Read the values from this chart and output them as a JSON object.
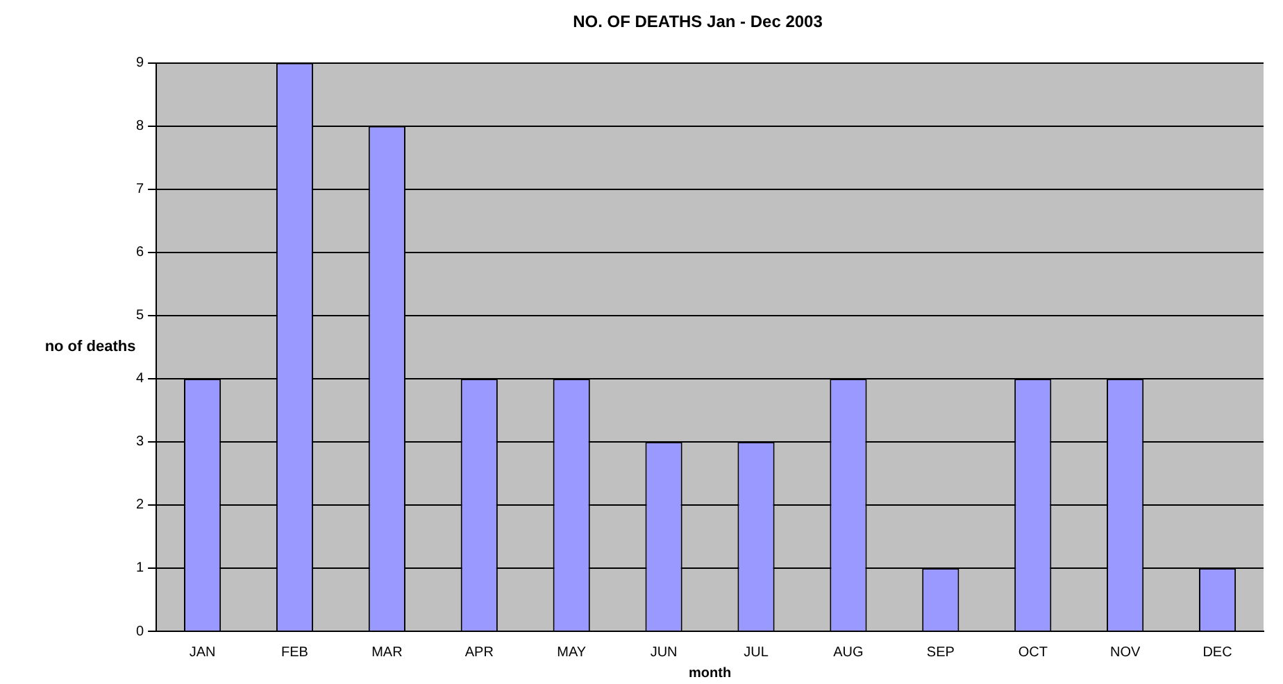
{
  "chart_data": {
    "type": "bar",
    "title": "NO. OF DEATHS Jan - Dec 2003",
    "xlabel": "month",
    "ylabel": "no of deaths",
    "categories": [
      "JAN",
      "FEB",
      "MAR",
      "APR",
      "MAY",
      "JUN",
      "JUL",
      "AUG",
      "SEP",
      "OCT",
      "NOV",
      "DEC"
    ],
    "values": [
      4,
      9,
      8,
      4,
      4,
      3,
      3,
      4,
      1,
      4,
      4,
      1
    ],
    "color": "#9999ff",
    "ylim": [
      0,
      9
    ],
    "yticks": [
      0,
      1,
      2,
      3,
      4,
      5,
      6,
      7,
      8,
      9
    ],
    "grid": "y",
    "legend": false
  }
}
